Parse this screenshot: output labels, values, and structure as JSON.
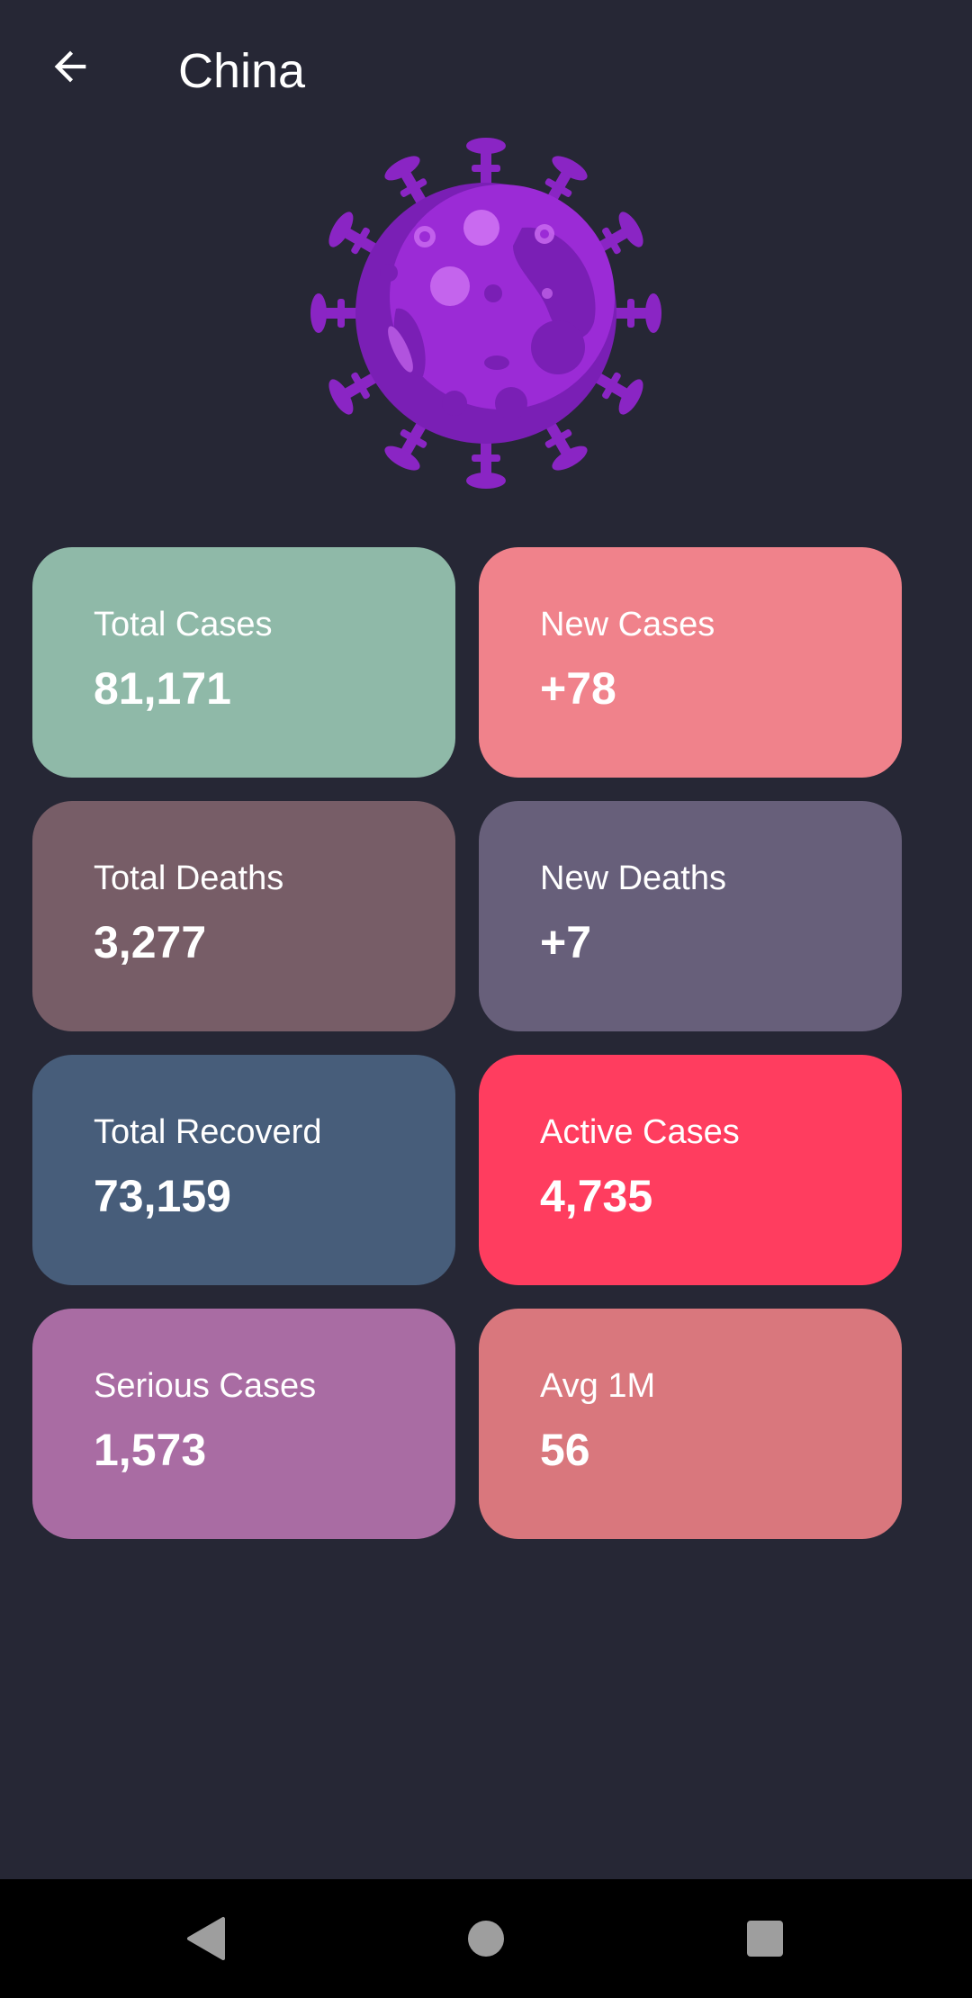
{
  "header": {
    "title": "China",
    "back_icon": "arrow-left-icon"
  },
  "illustration": {
    "icon": "virus-icon",
    "colors": {
      "body": "#9b2bd6",
      "shade": "#7a1fb5",
      "spike": "#8a25c4",
      "highlight": "#c96af0"
    }
  },
  "stats": [
    {
      "label": "Total Cases",
      "value": "81,171",
      "color": "#8fb9a8"
    },
    {
      "label": "New Cases",
      "value": "+78",
      "color": "#f0828b"
    },
    {
      "label": "Total Deaths",
      "value": "3,277",
      "color": "#775d67"
    },
    {
      "label": "New Deaths",
      "value": "+7",
      "color": "#675f7a"
    },
    {
      "label": "Total Recoverd",
      "value": "73,159",
      "color": "#475d7a"
    },
    {
      "label": "Active Cases",
      "value": "4,735",
      "color": "#ff3d5f"
    },
    {
      "label": "Serious Cases",
      "value": "1,573",
      "color": "#a96ca3"
    },
    {
      "label": "Avg 1M",
      "value": "56",
      "color": "#d9777d"
    }
  ],
  "navigation": {
    "back_icon": "nav-back-triangle-icon",
    "home_icon": "nav-home-circle-icon",
    "recents_icon": "nav-recents-square-icon",
    "icon_color": "#9e9e9e"
  }
}
